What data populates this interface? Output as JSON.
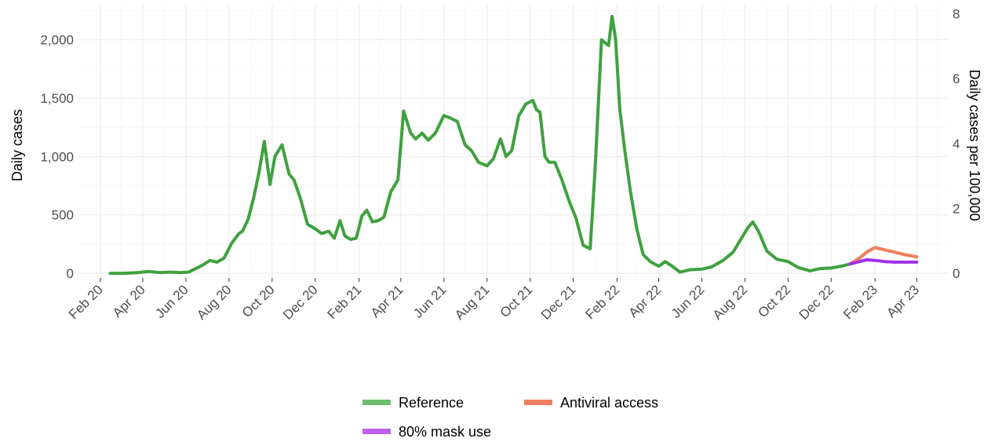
{
  "chart_data": {
    "type": "line",
    "title": "",
    "xlabel": "",
    "ylabel": "Daily cases",
    "ylabel_right": "Daily cases per 100,000",
    "grid": true,
    "legend_position": "bottom",
    "x_tick_labels": [
      "Feb 20",
      "Apr 20",
      "Jun 20",
      "Aug 20",
      "Oct 20",
      "Dec 20",
      "Feb 21",
      "Apr 21",
      "Jun 21",
      "Aug 21",
      "Oct 21",
      "Dec 21",
      "Feb 22",
      "Apr 22",
      "Jun 22",
      "Aug 22",
      "Oct 22",
      "Dec 22",
      "Feb 23",
      "Apr 23"
    ],
    "y_ticks": [
      0,
      500,
      1000,
      1500,
      2000
    ],
    "y_tick_labels": [
      "0",
      "500",
      "1,000",
      "1,500",
      "2,000"
    ],
    "y_right_ticks": [
      0,
      2,
      4,
      6,
      8
    ],
    "y_right_tick_labels": [
      "0",
      "2",
      "4",
      "6",
      "8"
    ],
    "ylim": [
      -40,
      2300
    ],
    "y_right_lim": [
      -0.144,
      8.28
    ],
    "xlim": [
      "2020-01-01",
      "2023-05-15"
    ],
    "series": [
      {
        "name": "Reference",
        "color": "#3fa13f",
        "legend_color": "#6dbf6d",
        "x": [
          "2020-02-15",
          "2020-03-05",
          "2020-03-25",
          "2020-04-10",
          "2020-04-25",
          "2020-05-10",
          "2020-05-25",
          "2020-06-05",
          "2020-06-15",
          "2020-06-25",
          "2020-07-05",
          "2020-07-15",
          "2020-07-25",
          "2020-08-05",
          "2020-08-15",
          "2020-08-20",
          "2020-08-28",
          "2020-09-05",
          "2020-09-12",
          "2020-09-20",
          "2020-09-28",
          "2020-10-05",
          "2020-10-15",
          "2020-10-25",
          "2020-11-01",
          "2020-11-10",
          "2020-11-20",
          "2020-12-01",
          "2020-12-10",
          "2020-12-20",
          "2020-12-28",
          "2021-01-05",
          "2021-01-12",
          "2021-01-20",
          "2021-01-28",
          "2021-02-05",
          "2021-02-12",
          "2021-02-20",
          "2021-02-28",
          "2021-03-08",
          "2021-03-18",
          "2021-03-28",
          "2021-04-05",
          "2021-04-15",
          "2021-04-22",
          "2021-05-01",
          "2021-05-10",
          "2021-05-20",
          "2021-06-01",
          "2021-06-10",
          "2021-06-20",
          "2021-07-01",
          "2021-07-10",
          "2021-07-20",
          "2021-08-01",
          "2021-08-10",
          "2021-08-20",
          "2021-08-28",
          "2021-09-05",
          "2021-09-15",
          "2021-09-25",
          "2021-10-05",
          "2021-10-10",
          "2021-10-15",
          "2021-10-22",
          "2021-10-28",
          "2021-11-05",
          "2021-11-15",
          "2021-11-25",
          "2021-12-05",
          "2021-12-15",
          "2021-12-25",
          "2022-01-01",
          "2022-01-10",
          "2022-01-20",
          "2022-01-25",
          "2022-01-30",
          "2022-02-05",
          "2022-02-12",
          "2022-02-20",
          "2022-03-01",
          "2022-03-10",
          "2022-03-20",
          "2022-04-01",
          "2022-04-10",
          "2022-04-20",
          "2022-05-01",
          "2022-05-15",
          "2022-06-01",
          "2022-06-15",
          "2022-07-01",
          "2022-07-15",
          "2022-07-25",
          "2022-08-05",
          "2022-08-12",
          "2022-08-20",
          "2022-09-01",
          "2022-09-15",
          "2022-10-01",
          "2022-10-15",
          "2022-11-01",
          "2022-11-15",
          "2022-12-01",
          "2022-12-15",
          "2022-12-28",
          "2023-01-10",
          "2023-01-20",
          "2023-02-01",
          "2023-02-15",
          "2023-03-01",
          "2023-03-15",
          "2023-04-01"
        ],
        "values": [
          0,
          0,
          5,
          15,
          5,
          10,
          5,
          10,
          40,
          70,
          110,
          95,
          130,
          260,
          340,
          360,
          460,
          650,
          850,
          1130,
          760,
          1000,
          1100,
          850,
          800,
          640,
          420,
          380,
          340,
          360,
          300,
          450,
          320,
          290,
          300,
          490,
          540,
          440,
          450,
          480,
          700,
          800,
          1390,
          1200,
          1150,
          1200,
          1140,
          1200,
          1350,
          1330,
          1300,
          1100,
          1050,
          950,
          920,
          980,
          1150,
          1000,
          1050,
          1350,
          1450,
          1480,
          1400,
          1380,
          1000,
          950,
          950,
          800,
          620,
          470,
          240,
          210,
          900,
          2000,
          1950,
          2200,
          2000,
          1400,
          1050,
          700,
          380,
          160,
          100,
          60,
          100,
          60,
          10,
          30,
          35,
          55,
          110,
          180,
          280,
          390,
          440,
          360,
          190,
          120,
          100,
          50,
          20,
          40,
          45,
          60,
          80,
          130,
          180,
          220,
          200,
          180,
          160,
          140
        ]
      },
      {
        "name": "Antiviral access",
        "color": "#f08060",
        "legend_color": "#f08060",
        "x": [
          "2022-12-28",
          "2023-01-10",
          "2023-01-20",
          "2023-02-01",
          "2023-02-15",
          "2023-03-01",
          "2023-03-15",
          "2023-04-01"
        ],
        "values": [
          80,
          130,
          180,
          220,
          200,
          180,
          160,
          140
        ]
      },
      {
        "name": "80% mask use",
        "color": "#a030e8",
        "legend_color": "#c060f0",
        "x": [
          "2022-12-28",
          "2023-01-10",
          "2023-01-20",
          "2023-02-01",
          "2023-02-15",
          "2023-03-01",
          "2023-03-15",
          "2023-04-01"
        ],
        "values": [
          80,
          100,
          115,
          110,
          100,
          95,
          95,
          95
        ]
      }
    ]
  }
}
